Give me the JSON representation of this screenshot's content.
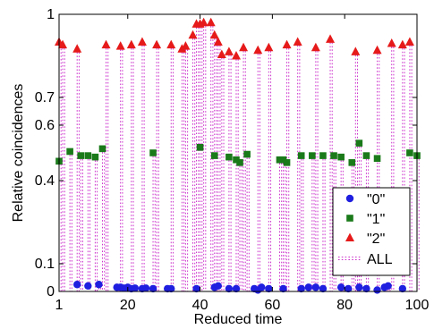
{
  "chart_data": {
    "type": "scatter",
    "xlabel": "Reduced time",
    "ylabel": "Relative coincidences",
    "xlim": [
      1,
      100
    ],
    "ylim": [
      0,
      1
    ],
    "x_ticks": [
      1,
      20,
      40,
      60,
      80,
      100
    ],
    "y_ticks": [
      0,
      0.1,
      0.4,
      0.6,
      0.7,
      1
    ],
    "y_tick_labels": [
      "0",
      "0.1",
      "0.4",
      "0.6",
      "0.7",
      "1"
    ],
    "legend_placement": "bottom-right",
    "grid": false,
    "series": [
      {
        "name": "\"0\"",
        "marker": "circle",
        "color": "#1f1fe0",
        "points": [
          [
            6,
            0.025
          ],
          [
            9,
            0.02
          ],
          [
            12,
            0.025
          ],
          [
            17,
            0.015
          ],
          [
            18,
            0.015
          ],
          [
            19,
            0.012
          ],
          [
            20,
            0.015
          ],
          [
            21,
            0.01
          ],
          [
            22,
            0.012
          ],
          [
            24,
            0.01
          ],
          [
            25,
            0.012
          ],
          [
            27,
            0.01
          ],
          [
            31,
            0.01
          ],
          [
            32,
            0.01
          ],
          [
            39,
            0.01
          ],
          [
            44,
            0.015
          ],
          [
            45,
            0.02
          ],
          [
            48,
            0.01
          ],
          [
            50,
            0.01
          ],
          [
            55,
            0.01
          ],
          [
            56,
            0.005
          ],
          [
            57,
            0.015
          ],
          [
            59,
            0.01
          ],
          [
            63,
            0.01
          ],
          [
            68,
            0.01
          ],
          [
            70,
            0.015
          ],
          [
            72,
            0.015
          ],
          [
            74,
            0.01
          ],
          [
            79,
            0.015
          ],
          [
            81,
            0.01
          ],
          [
            84,
            0.015
          ],
          [
            86,
            0.01
          ],
          [
            89,
            0.005
          ],
          [
            91,
            0.015
          ],
          [
            92,
            0.02
          ],
          [
            96,
            0.01
          ]
        ]
      },
      {
        "name": "\"1\"",
        "marker": "square",
        "color": "#1a7a1a",
        "points": [
          [
            1,
            0.47
          ],
          [
            4,
            0.505
          ],
          [
            7,
            0.49
          ],
          [
            9,
            0.49
          ],
          [
            11,
            0.485
          ],
          [
            13,
            0.515
          ],
          [
            27,
            0.5
          ],
          [
            40,
            0.52
          ],
          [
            44,
            0.49
          ],
          [
            48,
            0.485
          ],
          [
            50,
            0.475
          ],
          [
            51,
            0.465
          ],
          [
            53,
            0.495
          ],
          [
            62,
            0.475
          ],
          [
            63,
            0.475
          ],
          [
            64,
            0.465
          ],
          [
            68,
            0.49
          ],
          [
            71,
            0.49
          ],
          [
            74,
            0.49
          ],
          [
            77,
            0.49
          ],
          [
            79,
            0.485
          ],
          [
            82,
            0.465
          ],
          [
            84,
            0.535
          ],
          [
            86,
            0.49
          ],
          [
            89,
            0.48
          ],
          [
            98,
            0.5
          ],
          [
            100,
            0.49
          ]
        ]
      },
      {
        "name": "\"2\"",
        "marker": "triangle",
        "color": "#e61a1a",
        "points": [
          [
            1,
            0.9
          ],
          [
            2,
            0.89
          ],
          [
            6,
            0.875
          ],
          [
            14,
            0.89
          ],
          [
            18,
            0.885
          ],
          [
            21,
            0.89
          ],
          [
            24,
            0.9
          ],
          [
            28,
            0.89
          ],
          [
            32,
            0.89
          ],
          [
            35,
            0.875
          ],
          [
            36,
            0.885
          ],
          [
            38,
            0.925
          ],
          [
            39,
            0.965
          ],
          [
            40,
            0.965
          ],
          [
            41,
            0.97
          ],
          [
            43,
            0.97
          ],
          [
            44,
            0.925
          ],
          [
            45,
            0.9
          ],
          [
            46,
            0.855
          ],
          [
            48,
            0.865
          ],
          [
            50,
            0.85
          ],
          [
            52,
            0.88
          ],
          [
            56,
            0.87
          ],
          [
            59,
            0.88
          ],
          [
            64,
            0.89
          ],
          [
            67,
            0.9
          ],
          [
            72,
            0.88
          ],
          [
            76,
            0.91
          ],
          [
            83,
            0.865
          ],
          [
            89,
            0.87
          ],
          [
            93,
            0.895
          ],
          [
            96,
            0.89
          ],
          [
            98,
            0.9
          ]
        ]
      },
      {
        "name": "ALL",
        "marker": "dotted-line",
        "color": "#cc33cc"
      }
    ]
  }
}
